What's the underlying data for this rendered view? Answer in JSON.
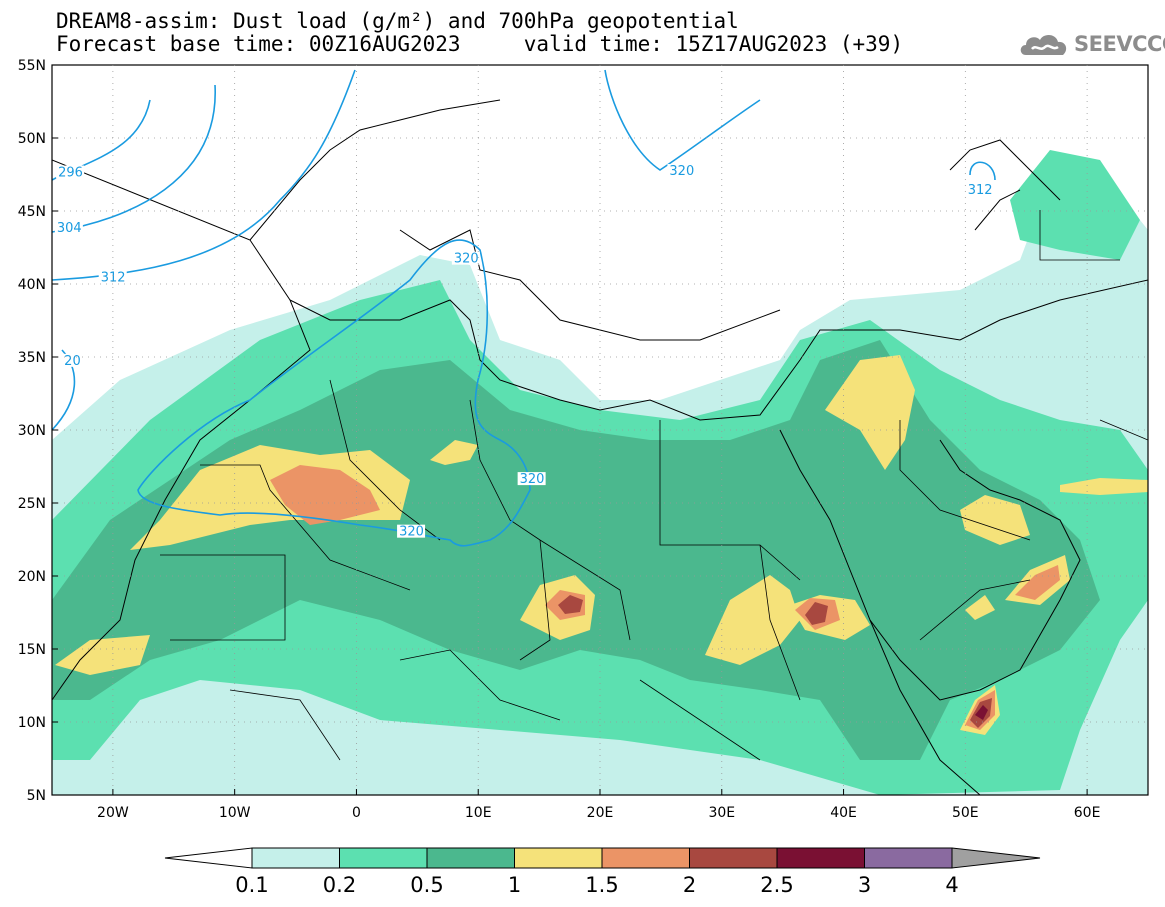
{
  "header": {
    "title_line1": "DREAM8-assim: Dust load (g/m²) and 700hPa geopotential",
    "title_line2": "Forecast base time: 00Z16AUG2023     valid time: 15Z17AUG2023 (+39)"
  },
  "logo": {
    "text": "SEEVCCC",
    "icon": "cloud-icon"
  },
  "map": {
    "lon_range": [
      -25,
      65
    ],
    "lat_range": [
      5,
      55
    ],
    "lat_ticks": [
      {
        "value": 55,
        "label": "55N"
      },
      {
        "value": 50,
        "label": "50N"
      },
      {
        "value": 45,
        "label": "45N"
      },
      {
        "value": 40,
        "label": "40N"
      },
      {
        "value": 35,
        "label": "35N"
      },
      {
        "value": 30,
        "label": "30N"
      },
      {
        "value": 25,
        "label": "25N"
      },
      {
        "value": 20,
        "label": "20N"
      },
      {
        "value": 15,
        "label": "15N"
      },
      {
        "value": 10,
        "label": "10N"
      },
      {
        "value": 5,
        "label": "5N"
      }
    ],
    "lon_ticks": [
      {
        "value": -20,
        "label": "20W"
      },
      {
        "value": -10,
        "label": "10W"
      },
      {
        "value": 0,
        "label": "0"
      },
      {
        "value": 10,
        "label": "10E"
      },
      {
        "value": 20,
        "label": "20E"
      },
      {
        "value": 30,
        "label": "30E"
      },
      {
        "value": 40,
        "label": "40E"
      },
      {
        "value": 50,
        "label": "50E"
      },
      {
        "value": 60,
        "label": "60E"
      }
    ],
    "isoline_color": "#1a9be0",
    "isoline_labels": [
      {
        "text": "296",
        "lon": -24.5,
        "lat": 47.5
      },
      {
        "text": "304",
        "lon": -24.6,
        "lat": 43.7
      },
      {
        "text": "312",
        "lon": -21.0,
        "lat": 40.3
      },
      {
        "text": "20",
        "lon": -24.0,
        "lat": 34.6
      },
      {
        "text": "320",
        "lon": 8.0,
        "lat": 41.6
      },
      {
        "text": "320",
        "lon": 13.4,
        "lat": 26.5
      },
      {
        "text": "320",
        "lon": 3.5,
        "lat": 22.9
      },
      {
        "text": "320",
        "lon": 25.7,
        "lat": 47.6
      },
      {
        "text": "312",
        "lon": 50.2,
        "lat": 46.3
      }
    ]
  },
  "colorbar": {
    "colors": [
      "#c5f0ea",
      "#5ce0b0",
      "#4bb88e",
      "#f5e27a",
      "#eb9466",
      "#a84840",
      "#7a1033",
      "#8a6aa0"
    ],
    "labels": [
      "0.1",
      "0.2",
      "0.5",
      "1",
      "1.5",
      "2",
      "2.5",
      "3",
      "4"
    ]
  }
}
